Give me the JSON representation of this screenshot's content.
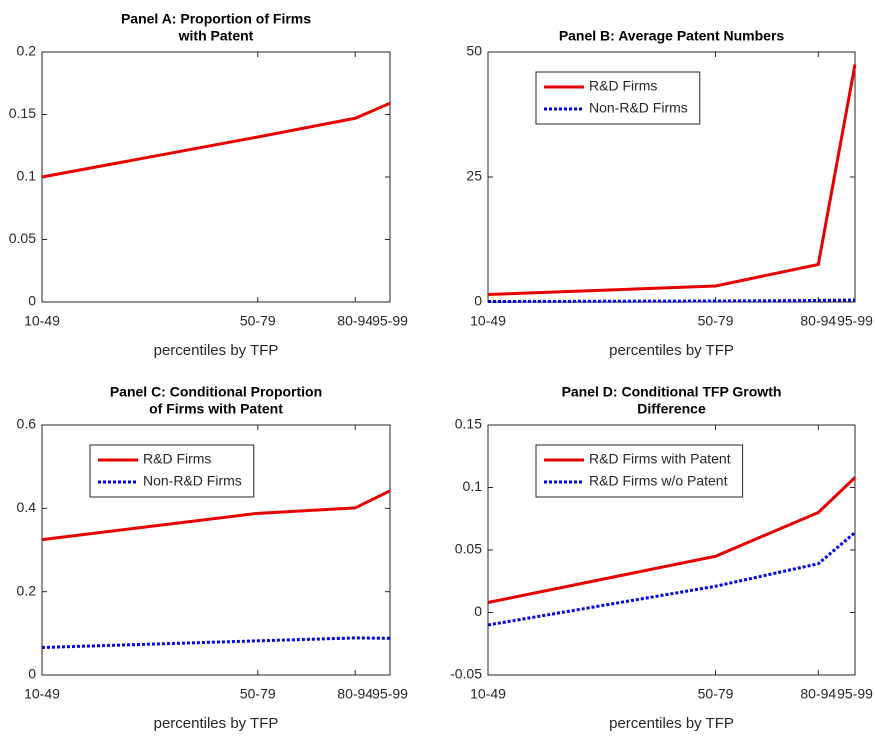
{
  "chart_data": [
    {
      "type": "line",
      "title": [
        "Panel A: Proportion of Firms",
        "with Patent"
      ],
      "xlabel": "percentiles by TFP",
      "x": [
        49,
        80,
        94,
        99
      ],
      "xlim": [
        49,
        99
      ],
      "xticks": [
        {
          "value": 49,
          "label": "10-49"
        },
        {
          "value": 80,
          "label": "50-79"
        },
        {
          "value": 94,
          "label": "80-94"
        },
        {
          "value": 99,
          "label": "95-99"
        }
      ],
      "ylim": [
        0,
        0.2
      ],
      "yticks": [
        0,
        0.05,
        0.1,
        0.15,
        0.2
      ],
      "series": [
        {
          "color": "#e60000",
          "linestyle": "solid",
          "values": [
            0.1,
            0.132,
            0.147,
            0.159
          ]
        }
      ]
    },
    {
      "type": "line",
      "title": [
        "Panel B: Average Patent Numbers"
      ],
      "xlabel": "percentiles by TFP",
      "x": [
        49,
        80,
        94,
        99
      ],
      "xlim": [
        49,
        99
      ],
      "xticks": [
        {
          "value": 49,
          "label": "10-49"
        },
        {
          "value": 80,
          "label": "50-79"
        },
        {
          "value": 94,
          "label": "80-94"
        },
        {
          "value": 99,
          "label": "95-99"
        }
      ],
      "ylim": [
        0,
        50
      ],
      "yticks": [
        0,
        25,
        50
      ],
      "legend": "northwest",
      "series": [
        {
          "name": "R&D Firms",
          "color": "#e60000",
          "linestyle": "solid",
          "values": [
            1.5,
            3.2,
            7.5,
            47.5
          ]
        },
        {
          "name": "Non-R&D Firms",
          "color": "#0000e6",
          "linestyle": "dotted",
          "values": [
            0.1,
            0.2,
            0.3,
            0.4
          ]
        }
      ]
    },
    {
      "type": "line",
      "title": [
        "Panel C: Conditional Proportion",
        "of Firms with Patent"
      ],
      "xlabel": "percentiles by TFP",
      "x": [
        49,
        80,
        94,
        99
      ],
      "xlim": [
        49,
        99
      ],
      "xticks": [
        {
          "value": 49,
          "label": "10-49"
        },
        {
          "value": 80,
          "label": "50-79"
        },
        {
          "value": 94,
          "label": "80-94"
        },
        {
          "value": 99,
          "label": "95-99"
        }
      ],
      "ylim": [
        0,
        0.6
      ],
      "yticks": [
        0,
        0.2,
        0.4,
        0.6
      ],
      "legend": "northwest",
      "series": [
        {
          "name": "R&D Firms",
          "color": "#e60000",
          "linestyle": "solid",
          "values": [
            0.325,
            0.388,
            0.401,
            0.442
          ]
        },
        {
          "name": "Non-R&D Firms",
          "color": "#0000e6",
          "linestyle": "dotted",
          "values": [
            0.066,
            0.082,
            0.089,
            0.088
          ]
        }
      ]
    },
    {
      "type": "line",
      "title": [
        "Panel D: Conditional TFP Growth",
        "Difference"
      ],
      "xlabel": "percentiles by TFP",
      "x": [
        49,
        80,
        94,
        99
      ],
      "xlim": [
        49,
        99
      ],
      "xticks": [
        {
          "value": 49,
          "label": "10-49"
        },
        {
          "value": 80,
          "label": "50-79"
        },
        {
          "value": 94,
          "label": "80-94"
        },
        {
          "value": 99,
          "label": "95-99"
        }
      ],
      "ylim": [
        -0.05,
        0.15
      ],
      "yticks": [
        -0.05,
        0,
        0.05,
        0.1,
        0.15
      ],
      "legend": "northwest",
      "series": [
        {
          "name": "R&D Firms with Patent",
          "color": "#e60000",
          "linestyle": "solid",
          "values": [
            0.008,
            0.045,
            0.08,
            0.108
          ]
        },
        {
          "name": "R&D Firms w/o Patent",
          "color": "#0000e6",
          "linestyle": "dotted",
          "values": [
            -0.01,
            0.021,
            0.039,
            0.064
          ]
        }
      ]
    }
  ]
}
